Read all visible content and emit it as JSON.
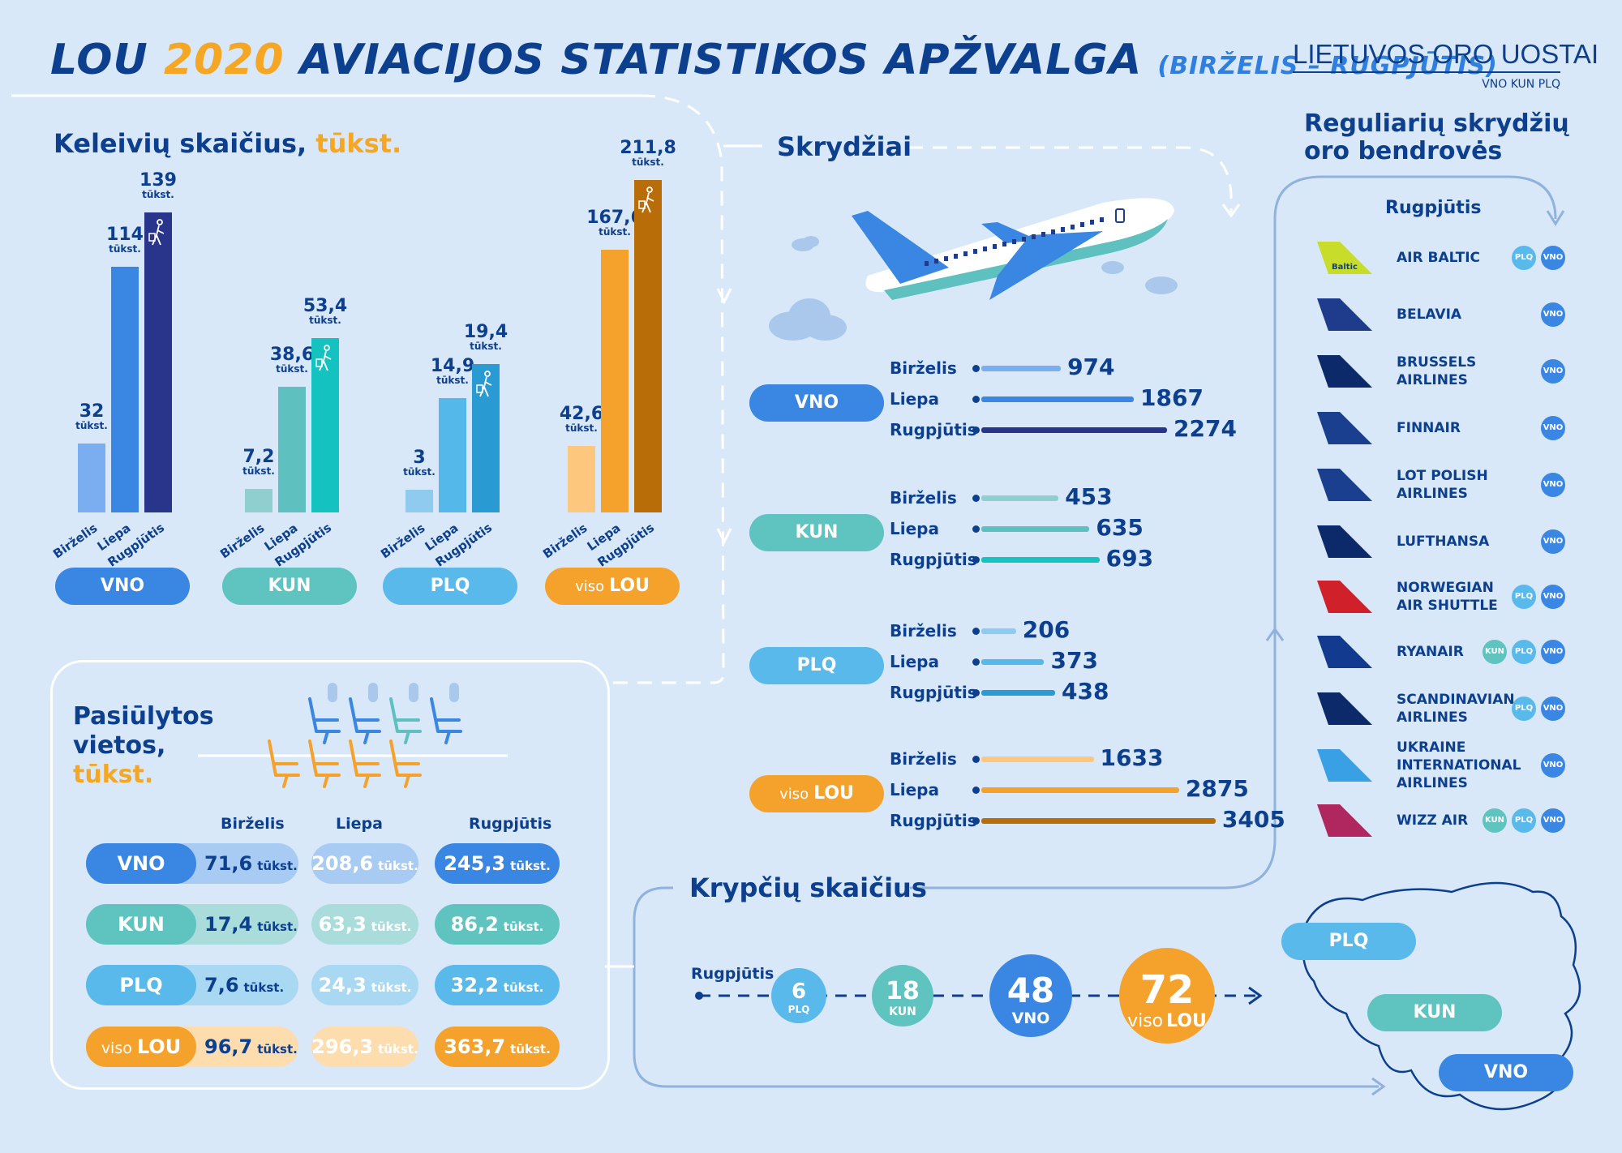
{
  "header": {
    "title_a": "LOU",
    "title_year": "2020",
    "title_b": "AVIACIJOS STATISTIKOS APŽVALGA",
    "title_period": "(BIRŽELIS – RUGPJŪTIS)"
  },
  "brand": {
    "name": "LIETUVOS ORO UOSTAI",
    "codes": "VNO KUN PLQ"
  },
  "passengers": {
    "title_a": "Keleivių skaičius,",
    "title_b": "tūkst.",
    "unit": "tūkst.",
    "months": [
      "Birželis",
      "Liepa",
      "Rugpjūtis"
    ],
    "groups": [
      {
        "airport": "VNO",
        "values": [
          "32",
          "114",
          "139"
        ],
        "nums": [
          32,
          114,
          139
        ],
        "colors": [
          "#7aaef0",
          "#3a86e3",
          "#28358a"
        ],
        "pill": "#3a86e3"
      },
      {
        "airport": "KUN",
        "values": [
          "7,2",
          "38,6",
          "53,4"
        ],
        "nums": [
          7.2,
          38.6,
          53.4
        ],
        "colors": [
          "#8fcfcf",
          "#5ec0bf",
          "#14c2c0"
        ],
        "pill": "#5fc3bf"
      },
      {
        "airport": "PLQ",
        "values": [
          "3",
          "14,9",
          "19,4"
        ],
        "nums": [
          3,
          14.9,
          19.4
        ],
        "colors": [
          "#8ecbee",
          "#55b8ea",
          "#2a9bd2"
        ],
        "pill": "#58b9ea"
      },
      {
        "airport_pre": "viso",
        "airport": "LOU",
        "values": [
          "42,6",
          "167,6",
          "211,8"
        ],
        "nums": [
          42.6,
          167.6,
          211.8
        ],
        "colors": [
          "#fdc77e",
          "#f5a22c",
          "#b86d08"
        ],
        "pill": "#f5a22c"
      }
    ]
  },
  "flights": {
    "title": "Skrydžiai",
    "months": [
      "Birželis",
      "Liepa",
      "Rugpjūtis"
    ],
    "groups": [
      {
        "airport": "VNO",
        "values": [
          974,
          1867,
          2274
        ],
        "labels": [
          "974",
          "1867",
          "2274"
        ],
        "colors": [
          "#7aaef0",
          "#3a86e3",
          "#28358a"
        ],
        "pill": "#3a86e3"
      },
      {
        "airport": "KUN",
        "values": [
          453,
          635,
          693
        ],
        "labels": [
          "453",
          "635",
          "693"
        ],
        "colors": [
          "#8fcfcf",
          "#5ec0bf",
          "#14c2c0"
        ],
        "pill": "#5fc3bf"
      },
      {
        "airport": "PLQ",
        "values": [
          206,
          373,
          438
        ],
        "labels": [
          "206",
          "373",
          "438"
        ],
        "colors": [
          "#8ecbee",
          "#55b8ea",
          "#2a9bd2"
        ],
        "pill": "#58b9ea"
      },
      {
        "airport_pre": "viso",
        "airport": "LOU",
        "values": [
          1633,
          2875,
          3405
        ],
        "labels": [
          "1633",
          "2875",
          "3405"
        ],
        "colors": [
          "#fdc77e",
          "#f5a22c",
          "#b86d08"
        ],
        "pill": "#f5a22c"
      }
    ]
  },
  "seats": {
    "title_a": "Pasiūlytos",
    "title_b": "vietos,",
    "title_c": "tūkst.",
    "unit": "tūkst.",
    "months": [
      "Birželis",
      "Liepa",
      "Rugpjūtis"
    ],
    "rows": [
      {
        "airport": "VNO",
        "values": [
          "71,6",
          "208,6",
          "245,3"
        ],
        "dark": "#3a86e3",
        "light": "#a8cbf4",
        "mid": "#7aaef0"
      },
      {
        "airport": "KUN",
        "values": [
          "17,4",
          "63,3",
          "86,2"
        ],
        "dark": "#5fc3bf",
        "light": "#a9dcda",
        "mid": "#8fcfcf"
      },
      {
        "airport": "PLQ",
        "values": [
          "7,6",
          "24,3",
          "32,2"
        ],
        "dark": "#58b9ea",
        "light": "#a9d8f3",
        "mid": "#8ecbee"
      },
      {
        "airport_pre": "viso",
        "airport": "LOU",
        "values": [
          "96,7",
          "296,3",
          "363,7"
        ],
        "dark": "#f5a22c",
        "light": "#fddcae",
        "mid": "#fdc77e"
      }
    ]
  },
  "airlines": {
    "title_a": "Reguliarių skrydžių",
    "title_b": "oro bendrovės",
    "month": "Rugpjūtis",
    "items": [
      {
        "name": [
          "AIR BALTIC"
        ],
        "badges": [
          "PLQ",
          "VNO"
        ],
        "tail": "#c8dc2a",
        "logo_text": "Baltic"
      },
      {
        "name": [
          "BELAVIA"
        ],
        "badges": [
          "VNO"
        ],
        "tail": "#1f3c8c"
      },
      {
        "name": [
          "BRUSSELS",
          "AIRLINES"
        ],
        "badges": [
          "VNO"
        ],
        "tail": "#0c2a6a"
      },
      {
        "name": [
          "FINNAIR"
        ],
        "badges": [
          "VNO"
        ],
        "tail": "#1a3f8e"
      },
      {
        "name": [
          "LOT POLISH",
          "AIRLINES"
        ],
        "badges": [
          "VNO"
        ],
        "tail": "#1a3f8e"
      },
      {
        "name": [
          "LUFTHANSA"
        ],
        "badges": [
          "VNO"
        ],
        "tail": "#0c2a6a"
      },
      {
        "name": [
          "NORWEGIAN",
          "AIR SHUTTLE"
        ],
        "badges": [
          "PLQ",
          "VNO"
        ],
        "tail": "#d0202a"
      },
      {
        "name": [
          "RYANAIR"
        ],
        "badges": [
          "KUN",
          "PLQ",
          "VNO"
        ],
        "tail": "#123a8f"
      },
      {
        "name": [
          "SCANDINAVIAN",
          "AIRLINES"
        ],
        "badges": [
          "PLQ",
          "VNO"
        ],
        "tail": "#0c2a6a"
      },
      {
        "name": [
          "UKRAINE",
          "INTERNATIONAL",
          "AIRLINES"
        ],
        "badges": [
          "VNO"
        ],
        "tail": "#3aa0e6"
      },
      {
        "name": [
          "WIZZ AIR"
        ],
        "badges": [
          "KUN",
          "PLQ",
          "VNO"
        ],
        "tail": "#b0265f"
      }
    ]
  },
  "destinations": {
    "title": "Krypčių skaičius",
    "month": "Rugpjūtis",
    "items": [
      {
        "value": "6",
        "label": "PLQ",
        "color": "#58b9ea"
      },
      {
        "value": "18",
        "label": "KUN",
        "color": "#5fc3bf"
      },
      {
        "value": "48",
        "label": "VNO",
        "color": "#3a86e3"
      },
      {
        "value": "72",
        "label_pre": "viso",
        "label": "LOU",
        "color": "#f5a22c"
      }
    ]
  },
  "map": {
    "labels": [
      "PLQ",
      "KUN",
      "VNO"
    ],
    "colors": [
      "#58b9ea",
      "#5fc3bf",
      "#3a86e3"
    ]
  },
  "badge_colors": {
    "VNO": "#3a86e3",
    "PLQ": "#58b9ea",
    "KUN": "#5fc3bf"
  }
}
